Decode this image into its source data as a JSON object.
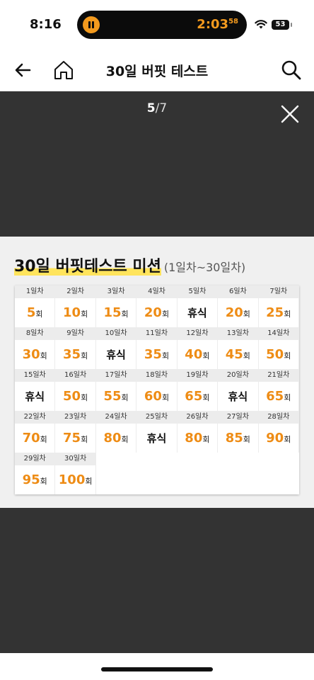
{
  "status_bar": {
    "time": "8:16",
    "timer": "2:03",
    "timer_seconds": "58",
    "battery": "53"
  },
  "header": {
    "title": "30일 버핏 테스트"
  },
  "viewer": {
    "current": "5",
    "separator": "/",
    "total": "7",
    "heading": "30일 버핏테스트 미션",
    "subheading": "(1일차~30일차)",
    "unit": "회",
    "days": [
      {
        "label": "1일차",
        "value": "5"
      },
      {
        "label": "2일차",
        "value": "10"
      },
      {
        "label": "3일차",
        "value": "15"
      },
      {
        "label": "4일차",
        "value": "20"
      },
      {
        "label": "5일차",
        "rest": "휴식"
      },
      {
        "label": "6일차",
        "value": "20"
      },
      {
        "label": "7일차",
        "value": "25"
      },
      {
        "label": "8일차",
        "value": "30"
      },
      {
        "label": "9일차",
        "value": "35"
      },
      {
        "label": "10일차",
        "rest": "휴식"
      },
      {
        "label": "11일차",
        "value": "35"
      },
      {
        "label": "12일차",
        "value": "40"
      },
      {
        "label": "13일차",
        "value": "45"
      },
      {
        "label": "14일차",
        "value": "50"
      },
      {
        "label": "15일차",
        "rest": "휴식"
      },
      {
        "label": "16일차",
        "value": "50"
      },
      {
        "label": "17일차",
        "value": "55"
      },
      {
        "label": "18일차",
        "value": "60"
      },
      {
        "label": "19일차",
        "value": "65"
      },
      {
        "label": "20일차",
        "rest": "휴식"
      },
      {
        "label": "21일차",
        "value": "65"
      },
      {
        "label": "22일차",
        "value": "70"
      },
      {
        "label": "23일차",
        "value": "75"
      },
      {
        "label": "24일차",
        "value": "80"
      },
      {
        "label": "25일차",
        "rest": "휴식"
      },
      {
        "label": "26일차",
        "value": "80"
      },
      {
        "label": "27일차",
        "value": "85"
      },
      {
        "label": "28일차",
        "value": "90"
      },
      {
        "label": "29일차",
        "value": "95"
      },
      {
        "label": "30일차",
        "value": "100"
      }
    ]
  },
  "colors": {
    "accent": "#ee8c15",
    "viewer_bg": "#333333",
    "highlight": "#ffe45c"
  }
}
